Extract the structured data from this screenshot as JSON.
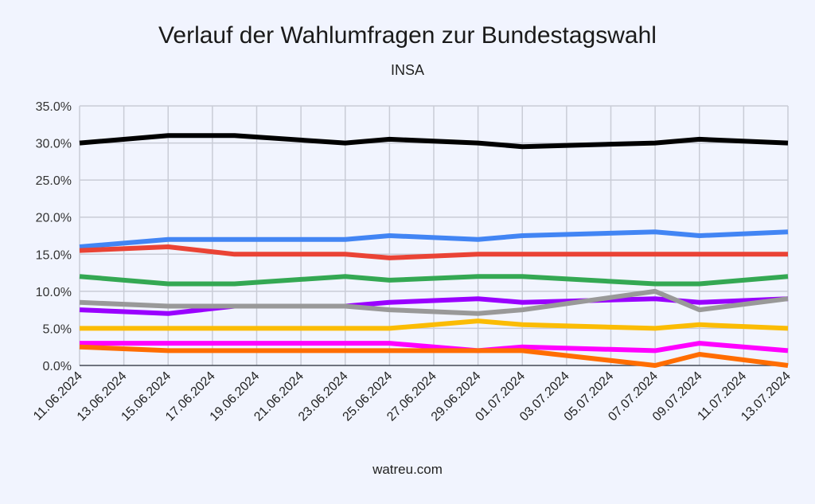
{
  "chart_data": {
    "type": "line",
    "title": "Verlauf der Wahlumfragen zur Bundestagswahl",
    "subtitle": "INSA",
    "footer": "watreu.com",
    "xlabel": "",
    "ylabel": "",
    "ylim": [
      0,
      35
    ],
    "yticks": [
      "0.0%",
      "5.0%",
      "10.0%",
      "15.0%",
      "20.0%",
      "25.0%",
      "30.0%",
      "35.0%"
    ],
    "ytick_values": [
      0,
      5,
      10,
      15,
      20,
      25,
      30,
      35
    ],
    "xlim": [
      "11.06.2024",
      "13.07.2024"
    ],
    "xticks": [
      "11.06.2024",
      "13.06.2024",
      "15.06.2024",
      "17.06.2024",
      "19.06.2024",
      "21.06.2024",
      "23.06.2024",
      "25.06.2024",
      "27.06.2024",
      "29.06.2024",
      "01.07.2024",
      "03.07.2024",
      "05.07.2024",
      "07.07.2024",
      "09.07.2024",
      "11.07.2024",
      "13.07.2024"
    ],
    "grid": true,
    "legend": "none",
    "x": [
      "11.06.2024",
      "15.06.2024",
      "18.06.2024",
      "23.06.2024",
      "25.06.2024",
      "29.06.2024",
      "01.07.2024",
      "07.07.2024",
      "09.07.2024",
      "13.07.2024"
    ],
    "series": [
      {
        "name": "black",
        "color": "#000000",
        "values": [
          30,
          31,
          31,
          30,
          30.5,
          30,
          29.5,
          30,
          30.5,
          30
        ]
      },
      {
        "name": "blue",
        "color": "#4285f4",
        "values": [
          16,
          17,
          17,
          17,
          17.5,
          17,
          17.5,
          18,
          17.5,
          18
        ]
      },
      {
        "name": "red",
        "color": "#ea4335",
        "values": [
          15.5,
          16,
          15,
          15,
          14.5,
          15,
          15,
          15,
          15,
          15
        ]
      },
      {
        "name": "green",
        "color": "#34a853",
        "values": [
          12,
          11,
          11,
          12,
          11.5,
          12,
          12,
          11,
          11,
          12
        ]
      },
      {
        "name": "purple",
        "color": "#9900ff",
        "values": [
          7.5,
          7,
          8,
          8,
          8.5,
          9,
          8.5,
          9,
          8.5,
          9
        ]
      },
      {
        "name": "gray",
        "color": "#999999",
        "values": [
          8.5,
          8,
          8,
          8,
          7.5,
          7,
          7.5,
          10,
          7.5,
          9
        ]
      },
      {
        "name": "yellow",
        "color": "#fbbc04",
        "values": [
          5,
          5,
          5,
          5,
          5,
          6,
          5.5,
          5,
          5.5,
          5
        ]
      },
      {
        "name": "magenta",
        "color": "#ff00ff",
        "values": [
          3,
          3,
          3,
          3,
          3,
          2,
          2.5,
          2,
          3,
          2
        ]
      },
      {
        "name": "orange",
        "color": "#ff6d01",
        "values": [
          2.5,
          2,
          2,
          2,
          2,
          2,
          2,
          0,
          1.5,
          0
        ]
      }
    ]
  }
}
